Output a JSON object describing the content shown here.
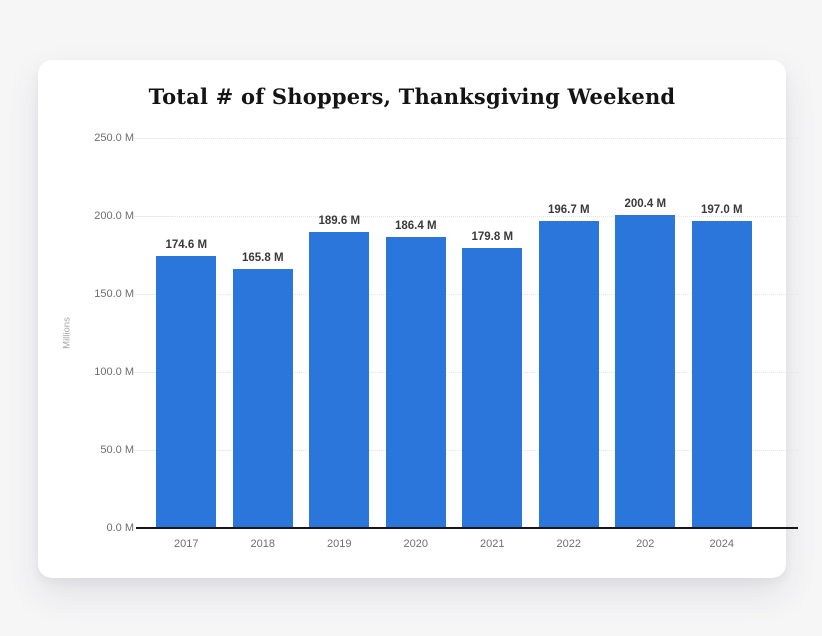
{
  "chart_data": {
    "type": "bar",
    "title": "Total # of Shoppers, Thanksgiving Weekend",
    "categories": [
      "2017",
      "2018",
      "2019",
      "2020",
      "2021",
      "2022",
      "202",
      "2024"
    ],
    "values": [
      174.6,
      165.8,
      189.6,
      186.4,
      179.8,
      196.7,
      200.4,
      197.0
    ],
    "value_labels": [
      "174.6 M",
      "165.8 M",
      "189.6 M",
      "186.4 M",
      "179.8 M",
      "196.7 M",
      "200.4 M",
      "197.0 M"
    ],
    "xlabel": "",
    "ylabel": "Millions",
    "y_ticks": [
      "250.0 M",
      "200.0 M",
      "150.0 M",
      "100.0 M",
      "50.0 M",
      "0.0 M"
    ],
    "y_tick_values": [
      250,
      200,
      150,
      100,
      50,
      0
    ],
    "ylim": [
      0,
      250
    ],
    "grid": true,
    "legend": false,
    "bar_color": "#2a76db",
    "background_color": "#ffffff",
    "page_background": "#f6f6f7"
  }
}
